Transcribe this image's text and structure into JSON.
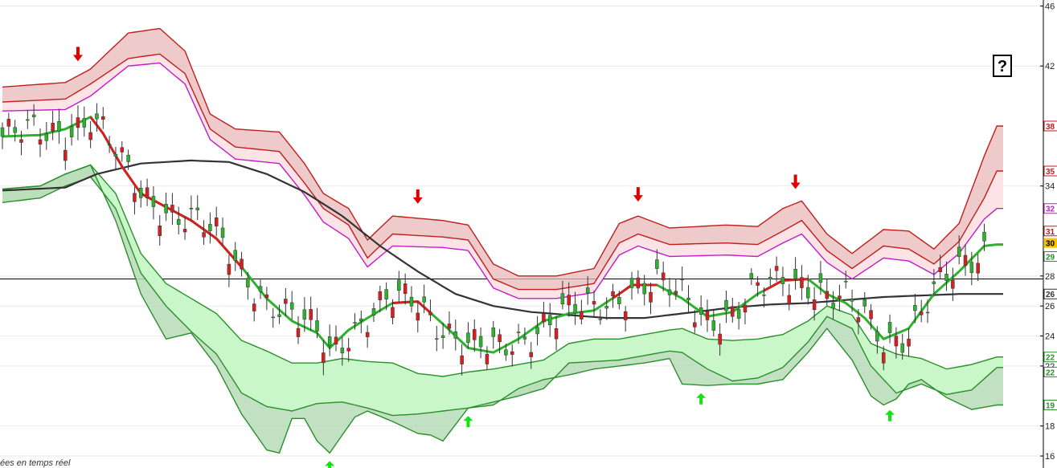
{
  "chart_data": {
    "type": "candlestick",
    "y_ticks": [
      "16",
      "18",
      "22",
      "24",
      "26",
      "28",
      "34",
      "42",
      "46"
    ],
    "ylim": [
      15.2,
      46.4
    ],
    "n_periods": 160,
    "reference_line": 27.8,
    "colors": {
      "up": "#2db22d",
      "down": "#d62020",
      "upper_fill": "#e8b8b8",
      "upper_fill_inner": "#fbe3e6",
      "upper_line": "#c21c1c",
      "magenta": "#c21cc8",
      "lower_fill": "#b7dbb7",
      "lower_fill_inner": "#c9f7c9",
      "lower_line": "#2a8f2a",
      "long_ma": "#333333"
    },
    "price_markers": [
      {
        "label": "38",
        "color": "#c21c1c"
      },
      {
        "label": "35",
        "color": "#c21c1c"
      },
      {
        "label": "32",
        "color": "#c21cc8"
      },
      {
        "label": "31",
        "color": "#c21c1c"
      },
      {
        "label": "30",
        "color": "#000000",
        "bg": "#f5c400"
      },
      {
        "label": "29",
        "color": "#2a8f2a"
      },
      {
        "label": "26",
        "color": "#333333"
      },
      {
        "label": "22",
        "color": "#2a8f2a"
      },
      {
        "label": "22",
        "color": "#2a8f2a"
      },
      {
        "label": "19",
        "color": "#2a8f2a"
      }
    ],
    "signals": [
      {
        "type": "sell",
        "x": 12
      },
      {
        "type": "sell",
        "x": 66
      },
      {
        "type": "sell",
        "x": 101
      },
      {
        "type": "sell",
        "x": 126
      },
      {
        "type": "buy",
        "x": 52
      },
      {
        "type": "buy",
        "x": 74
      },
      {
        "type": "buy",
        "x": 111
      },
      {
        "type": "buy",
        "x": 141
      }
    ],
    "upper_band_outer": [
      [
        0,
        40.6
      ],
      [
        10,
        40.9
      ],
      [
        14,
        41.8
      ],
      [
        20,
        44.2
      ],
      [
        25,
        44.5
      ],
      [
        29,
        43
      ],
      [
        33,
        38.8
      ],
      [
        37,
        37.8
      ],
      [
        44,
        37.6
      ],
      [
        48,
        35.5
      ],
      [
        51,
        33.5
      ],
      [
        55,
        32.5
      ],
      [
        58,
        30.4
      ],
      [
        62,
        32
      ],
      [
        70,
        31.7
      ],
      [
        74,
        31.4
      ],
      [
        78,
        28.8
      ],
      [
        82,
        28
      ],
      [
        88,
        28
      ],
      [
        94,
        28.5
      ],
      [
        98,
        31.5
      ],
      [
        101,
        32
      ],
      [
        106,
        31.2
      ],
      [
        115,
        31.4
      ],
      [
        120,
        31.3
      ],
      [
        124,
        32.5
      ],
      [
        127,
        33
      ],
      [
        131,
        30.8
      ],
      [
        135,
        29.5
      ],
      [
        140,
        31.1
      ],
      [
        144,
        31
      ],
      [
        148,
        29.8
      ],
      [
        152,
        31.5
      ],
      [
        156,
        36
      ],
      [
        158,
        38
      ]
    ],
    "upper_band_mid": [
      [
        0,
        39.6
      ],
      [
        10,
        39.8
      ],
      [
        14,
        40.8
      ],
      [
        20,
        42.5
      ],
      [
        25,
        42.8
      ],
      [
        29,
        41.5
      ],
      [
        33,
        37.8
      ],
      [
        37,
        36.6
      ],
      [
        44,
        36.3
      ],
      [
        48,
        34.2
      ],
      [
        51,
        32.5
      ],
      [
        55,
        31.4
      ],
      [
        58,
        29.2
      ],
      [
        62,
        30.8
      ],
      [
        70,
        30.6
      ],
      [
        74,
        30.4
      ],
      [
        78,
        27.8
      ],
      [
        82,
        27.1
      ],
      [
        88,
        27.1
      ],
      [
        94,
        27.5
      ],
      [
        98,
        30.2
      ],
      [
        101,
        30.8
      ],
      [
        106,
        30.1
      ],
      [
        115,
        30.2
      ],
      [
        120,
        30.1
      ],
      [
        124,
        31
      ],
      [
        127,
        31.7
      ],
      [
        131,
        29.7
      ],
      [
        135,
        28.5
      ],
      [
        140,
        30
      ],
      [
        144,
        29.8
      ],
      [
        148,
        28.8
      ],
      [
        152,
        30.3
      ],
      [
        156,
        33.2
      ],
      [
        158,
        35
      ]
    ],
    "magenta_line": [
      [
        0,
        39
      ],
      [
        10,
        39.1
      ],
      [
        14,
        40
      ],
      [
        20,
        42
      ],
      [
        25,
        42.2
      ],
      [
        29,
        40.8
      ],
      [
        33,
        37.1
      ],
      [
        37,
        35.8
      ],
      [
        44,
        35.5
      ],
      [
        48,
        33.4
      ],
      [
        51,
        31.6
      ],
      [
        55,
        30.5
      ],
      [
        58,
        28.6
      ],
      [
        62,
        30
      ],
      [
        70,
        29.9
      ],
      [
        74,
        29.7
      ],
      [
        78,
        27.2
      ],
      [
        82,
        26.5
      ],
      [
        88,
        26.5
      ],
      [
        94,
        26.9
      ],
      [
        98,
        29.4
      ],
      [
        101,
        30
      ],
      [
        106,
        29.3
      ],
      [
        115,
        29.4
      ],
      [
        120,
        29.3
      ],
      [
        124,
        30.2
      ],
      [
        127,
        30.8
      ],
      [
        131,
        28.9
      ],
      [
        135,
        27.8
      ],
      [
        140,
        29.2
      ],
      [
        144,
        29
      ],
      [
        148,
        28.1
      ],
      [
        152,
        29.5
      ],
      [
        156,
        31.8
      ],
      [
        158,
        32.5
      ]
    ],
    "lower_band_upper": [
      [
        0,
        33.8
      ],
      [
        6,
        34
      ],
      [
        10,
        34.8
      ],
      [
        14,
        35.4
      ],
      [
        18,
        33.5
      ],
      [
        22,
        29.5
      ],
      [
        26,
        27.5
      ],
      [
        30,
        26.5
      ],
      [
        34,
        25.5
      ],
      [
        38,
        23.7
      ],
      [
        42,
        23
      ],
      [
        46,
        22.2
      ],
      [
        50,
        22.2
      ],
      [
        54,
        22.5
      ],
      [
        58,
        22.3
      ],
      [
        62,
        22.2
      ],
      [
        66,
        21.5
      ],
      [
        70,
        21.3
      ],
      [
        74,
        21.6
      ],
      [
        78,
        21.8
      ],
      [
        82,
        22.1
      ],
      [
        86,
        22.4
      ],
      [
        90,
        23.5
      ],
      [
        94,
        23.8
      ],
      [
        98,
        23.8
      ],
      [
        102,
        24.1
      ],
      [
        106,
        24.4
      ],
      [
        108,
        24.5
      ],
      [
        112,
        23.8
      ],
      [
        116,
        23.7
      ],
      [
        120,
        23.8
      ],
      [
        124,
        24.1
      ],
      [
        128,
        25
      ],
      [
        131,
        26
      ],
      [
        135,
        25.4
      ],
      [
        138,
        23.5
      ],
      [
        142,
        22.8
      ],
      [
        146,
        22.5
      ],
      [
        150,
        21.8
      ],
      [
        154,
        22.1
      ],
      [
        158,
        22.6
      ]
    ],
    "lower_band_lower": [
      [
        0,
        32.9
      ],
      [
        6,
        33.2
      ],
      [
        10,
        34
      ],
      [
        14,
        34.6
      ],
      [
        18,
        32.5
      ],
      [
        22,
        28.2
      ],
      [
        26,
        26
      ],
      [
        30,
        24.3
      ],
      [
        34,
        22.8
      ],
      [
        38,
        20.2
      ],
      [
        42,
        19.3
      ],
      [
        46,
        19
      ],
      [
        50,
        19.5
      ],
      [
        54,
        19.6
      ],
      [
        58,
        19.2
      ],
      [
        62,
        18.7
      ],
      [
        66,
        18.8
      ],
      [
        70,
        19
      ],
      [
        74,
        19.2
      ],
      [
        78,
        19.6
      ],
      [
        82,
        20
      ],
      [
        86,
        20.5
      ],
      [
        90,
        22.2
      ],
      [
        94,
        22.3
      ],
      [
        98,
        22.4
      ],
      [
        102,
        22.7
      ],
      [
        106,
        23
      ],
      [
        108,
        22.9
      ],
      [
        112,
        21.8
      ],
      [
        116,
        21
      ],
      [
        120,
        21.2
      ],
      [
        124,
        21.9
      ],
      [
        128,
        23.6
      ],
      [
        131,
        25.3
      ],
      [
        135,
        24.5
      ],
      [
        138,
        22
      ],
      [
        142,
        20.2
      ],
      [
        146,
        20.8
      ],
      [
        150,
        20.1
      ],
      [
        154,
        20.4
      ],
      [
        158,
        21.9
      ]
    ],
    "lower_band_outer": [
      [
        0,
        33.8
      ],
      [
        6,
        34
      ],
      [
        10,
        34.8
      ],
      [
        14,
        35.4
      ],
      [
        18,
        31.7
      ],
      [
        22,
        26.8
      ],
      [
        26,
        23.8
      ],
      [
        30,
        24.2
      ],
      [
        34,
        22
      ],
      [
        38,
        18.8
      ],
      [
        42,
        16.4
      ],
      [
        44,
        16.2
      ],
      [
        46,
        18.5
      ],
      [
        48,
        18.5
      ],
      [
        50,
        17
      ],
      [
        52,
        16.2
      ],
      [
        56,
        18.6
      ],
      [
        58,
        19
      ],
      [
        62,
        18.3
      ],
      [
        66,
        17.5
      ],
      [
        68,
        17.4
      ],
      [
        70,
        17
      ],
      [
        72,
        18.1
      ],
      [
        74,
        19.2
      ],
      [
        78,
        19.4
      ],
      [
        82,
        20.5
      ],
      [
        86,
        21.1
      ],
      [
        90,
        21.4
      ],
      [
        94,
        21.8
      ],
      [
        98,
        22
      ],
      [
        102,
        22.2
      ],
      [
        106,
        22.5
      ],
      [
        108,
        20.8
      ],
      [
        112,
        20.7
      ],
      [
        116,
        20.8
      ],
      [
        120,
        20.8
      ],
      [
        124,
        21.1
      ],
      [
        128,
        22.9
      ],
      [
        131,
        24.5
      ],
      [
        135,
        22.4
      ],
      [
        138,
        20
      ],
      [
        140,
        19.4
      ],
      [
        142,
        19.8
      ],
      [
        144,
        20.8
      ],
      [
        146,
        21.1
      ],
      [
        150,
        19.9
      ],
      [
        154,
        19.1
      ],
      [
        158,
        19.4
      ]
    ],
    "long_ma": [
      [
        0,
        33.7
      ],
      [
        10,
        33.9
      ],
      [
        15,
        34.8
      ],
      [
        22,
        35.5
      ],
      [
        30,
        35.7
      ],
      [
        36,
        35.6
      ],
      [
        42,
        34.8
      ],
      [
        48,
        33.6
      ],
      [
        54,
        32
      ],
      [
        60,
        30
      ],
      [
        66,
        28.3
      ],
      [
        72,
        26.8
      ],
      [
        78,
        26
      ],
      [
        84,
        25.6
      ],
      [
        90,
        25.4
      ],
      [
        96,
        25.2
      ],
      [
        102,
        25.2
      ],
      [
        106,
        25.4
      ],
      [
        110,
        25.6
      ],
      [
        116,
        25.9
      ],
      [
        122,
        26.1
      ],
      [
        128,
        26.2
      ],
      [
        134,
        26.4
      ],
      [
        140,
        26.6
      ],
      [
        146,
        26.7
      ],
      [
        152,
        26.8
      ],
      [
        158,
        26.8
      ]
    ],
    "short_ma": [
      [
        0,
        37.3
      ],
      [
        6,
        37.4
      ],
      [
        10,
        37.8
      ],
      [
        14,
        38.6
      ],
      [
        16,
        37.5
      ],
      [
        19,
        35.3
      ],
      [
        22,
        33.5
      ],
      [
        26,
        32.6
      ],
      [
        30,
        31.7
      ],
      [
        34,
        30.5
      ],
      [
        38,
        28.6
      ],
      [
        42,
        26.5
      ],
      [
        46,
        25
      ],
      [
        50,
        24.2
      ],
      [
        52,
        23.2
      ],
      [
        55,
        24.4
      ],
      [
        58,
        25.2
      ],
      [
        62,
        26.2
      ],
      [
        66,
        26.3
      ],
      [
        70,
        24.8
      ],
      [
        74,
        23.2
      ],
      [
        78,
        22.9
      ],
      [
        82,
        23.8
      ],
      [
        86,
        25
      ],
      [
        90,
        25.5
      ],
      [
        94,
        25.7
      ],
      [
        98,
        26.8
      ],
      [
        100,
        27.4
      ],
      [
        104,
        27.4
      ],
      [
        108,
        26.5
      ],
      [
        112,
        25.3
      ],
      [
        116,
        25.6
      ],
      [
        120,
        26.8
      ],
      [
        124,
        27.7
      ],
      [
        128,
        27.8
      ],
      [
        131,
        26.8
      ],
      [
        134,
        26.2
      ],
      [
        137,
        25.2
      ],
      [
        140,
        23.8
      ],
      [
        144,
        24.5
      ],
      [
        148,
        26.8
      ],
      [
        152,
        28.3
      ],
      [
        156,
        30
      ],
      [
        158,
        30.1
      ]
    ],
    "short_ma_red_segments": [
      [
        14,
        38
      ],
      [
        62,
        68
      ],
      [
        97,
        104
      ],
      [
        121,
        128
      ]
    ]
  },
  "footer_text": "ées en temps réel",
  "question_box_text": "?"
}
